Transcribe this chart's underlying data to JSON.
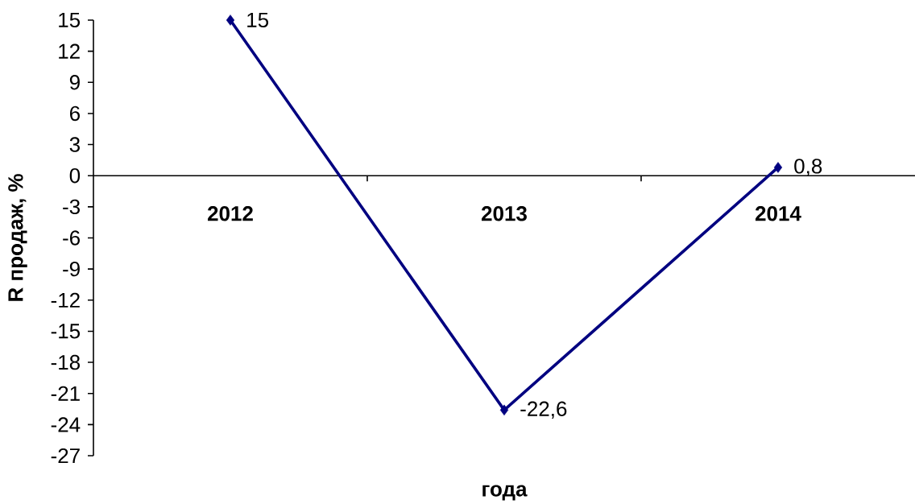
{
  "chart_data": {
    "type": "line",
    "xlabel": "года",
    "ylabel": "R продаж, %",
    "categories": [
      "2012",
      "2013",
      "2014"
    ],
    "series": [
      {
        "color": "#000080",
        "values": [
          15,
          -22.6,
          0.8
        ],
        "value_labels": [
          "15",
          "-22,6",
          "0,8"
        ]
      }
    ],
    "ylim": [
      -27,
      15
    ],
    "yticks": [
      -27,
      -24,
      -21,
      -18,
      -15,
      -12,
      -9,
      -6,
      -3,
      0,
      3,
      6,
      9,
      12,
      15
    ],
    "marker": "diamond",
    "line_style": "solid"
  }
}
